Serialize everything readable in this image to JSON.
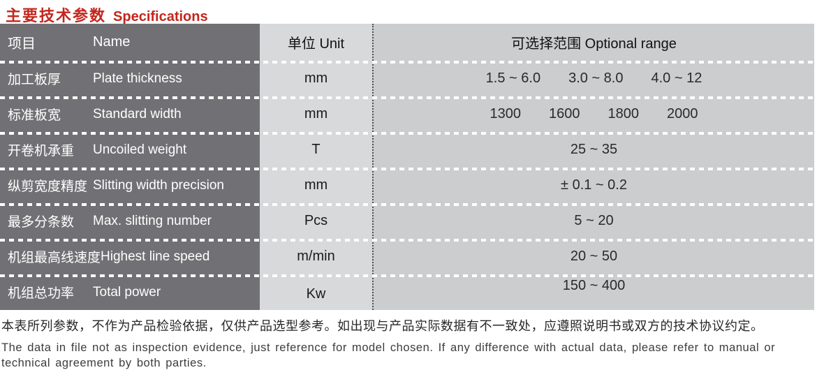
{
  "title": {
    "zh": "主要技术参数",
    "en": "Specifications"
  },
  "colors": {
    "accent_red": "#c4261d",
    "name_column_bg": "#717175",
    "unit_column_bg": "#d8d9da",
    "range_column_bg": "#cbcdce"
  },
  "table": {
    "header": {
      "name_zh": "项目",
      "name_en": "Name",
      "unit": "单位 Unit",
      "range": "可选择范围 Optional range"
    },
    "rows": [
      {
        "zh": "加工板厚",
        "en": "Plate thickness",
        "unit": "mm",
        "range": [
          "1.5 ~ 6.0",
          "3.0 ~ 8.0",
          "4.0 ~ 12"
        ]
      },
      {
        "zh": "标准板宽",
        "en": "Standard width",
        "unit": "mm",
        "range": [
          "1300",
          "1600",
          "1800",
          "2000"
        ]
      },
      {
        "zh": "开卷机承重",
        "en": "Uncoiled weight",
        "unit": "T",
        "range": [
          "25 ~ 35"
        ]
      },
      {
        "zh": "纵剪宽度精度",
        "en": "Slitting width precision",
        "unit": "mm",
        "range": [
          "± 0.1 ~ 0.2"
        ]
      },
      {
        "zh": "最多分条数",
        "en": "Max. slitting number",
        "unit": "Pcs",
        "range": [
          "5 ~ 20"
        ]
      },
      {
        "zh": "机组最高线速度",
        "en": "Highest line speed",
        "unit": "m/min",
        "range": [
          "20 ~ 50"
        ]
      },
      {
        "zh": "机组总功率",
        "en": "Total power",
        "unit": "Kw",
        "range": [
          "150 ~ 400"
        ]
      }
    ]
  },
  "footnote": {
    "zh": "本表所列参数，不作为产品检验依据，仅供产品选型参考。如出现与产品实际数据有不一致处，应遵照说明书或双方的技术协议约定。",
    "en": "The data in file not as inspection evidence, just reference for model chosen. If any difference with actual data, please refer to manual or technical agreement by both parties."
  }
}
